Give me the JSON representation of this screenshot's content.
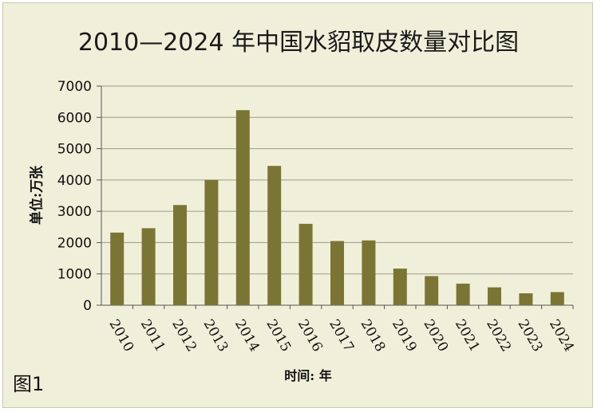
{
  "figure_label": "图1",
  "chart_data": {
    "type": "bar",
    "title": "2010—2024 年中国水貂取皮数量对比图",
    "xlabel": "时间: 年",
    "ylabel": "单位:万张",
    "ylim": [
      0,
      7000
    ],
    "yticks": [
      0,
      1000,
      2000,
      3000,
      4000,
      5000,
      6000,
      7000
    ],
    "grid": true,
    "bar_color": "#7b7535",
    "categories": [
      "2010",
      "2011",
      "2012",
      "2013",
      "2014",
      "2015",
      "2016",
      "2017",
      "2018",
      "2019",
      "2020",
      "2021",
      "2022",
      "2023",
      "2024"
    ],
    "values": [
      2320,
      2460,
      3200,
      4000,
      6230,
      4450,
      2600,
      2050,
      2070,
      1170,
      930,
      690,
      570,
      380,
      420
    ]
  }
}
